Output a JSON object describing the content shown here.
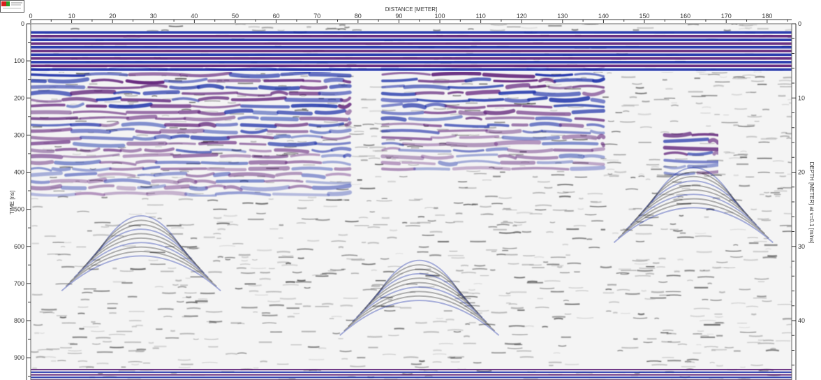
{
  "chart_data": {
    "type": "heatmap",
    "xlabel": "DISTANCE [METER]",
    "ylabel": "TIME [ns]",
    "y2label": "DEPTH [METER] at v=0.1 [m/ns]",
    "xlim": [
      0,
      186
    ],
    "ylim": [
      0,
      960
    ],
    "y2lim": [
      0,
      48
    ],
    "x_ticks": [
      0,
      10,
      20,
      30,
      40,
      50,
      60,
      70,
      80,
      90,
      100,
      110,
      120,
      130,
      140,
      150,
      160,
      170,
      180
    ],
    "y_ticks": [
      0,
      100,
      200,
      300,
      400,
      500,
      600,
      700,
      800,
      900
    ],
    "y2_ticks": [
      0,
      10,
      20,
      30,
      40
    ],
    "colormap": [
      "#ffffff",
      "#2e2e2e",
      "#1b2fa8",
      "#5e1f78"
    ],
    "direct_wave_band": [
      20,
      120
    ],
    "bottom_band": [
      930,
      960
    ],
    "strong_reflection_zones": [
      {
        "x": [
          0,
          78
        ],
        "y": [
          120,
          480
        ]
      },
      {
        "x": [
          86,
          140
        ],
        "y": [
          120,
          400
        ]
      },
      {
        "x": [
          155,
          168
        ],
        "y": [
          300,
          420
        ]
      }
    ],
    "hyperbola_apices": [
      {
        "x": 27,
        "y": 480
      },
      {
        "x": 95,
        "y": 600
      },
      {
        "x": 162,
        "y": 350
      }
    ]
  }
}
